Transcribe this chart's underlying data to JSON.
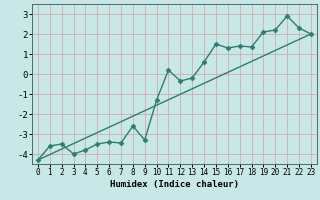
{
  "xlabel": "Humidex (Indice chaleur)",
  "background_color": "#c8e8e8",
  "plot_bg_color": "#c8e8e8",
  "grid_color": "#d4a0a0",
  "line_color": "#2e7d6e",
  "xlim": [
    -0.5,
    23.5
  ],
  "ylim": [
    -4.5,
    3.5
  ],
  "x_ticks": [
    0,
    1,
    2,
    3,
    4,
    5,
    6,
    7,
    8,
    9,
    10,
    11,
    12,
    13,
    14,
    15,
    16,
    17,
    18,
    19,
    20,
    21,
    22,
    23
  ],
  "y_ticks": [
    -4,
    -3,
    -2,
    -1,
    0,
    1,
    2,
    3
  ],
  "data_x": [
    0,
    1,
    2,
    3,
    4,
    5,
    6,
    7,
    8,
    9,
    10,
    11,
    12,
    13,
    14,
    15,
    16,
    17,
    18,
    19,
    20,
    21,
    22,
    23
  ],
  "data_y": [
    -4.3,
    -3.6,
    -3.5,
    -4.0,
    -3.8,
    -3.5,
    -3.4,
    -3.45,
    -2.6,
    -3.3,
    -1.3,
    0.2,
    -0.35,
    -0.2,
    0.6,
    1.5,
    1.3,
    1.4,
    1.35,
    2.1,
    2.2,
    2.9,
    2.3,
    2.0
  ],
  "line_x": [
    0,
    23
  ],
  "line_y": [
    -4.3,
    2.0
  ],
  "marker": "D",
  "marker_size": 2.5,
  "line_width": 1.0
}
